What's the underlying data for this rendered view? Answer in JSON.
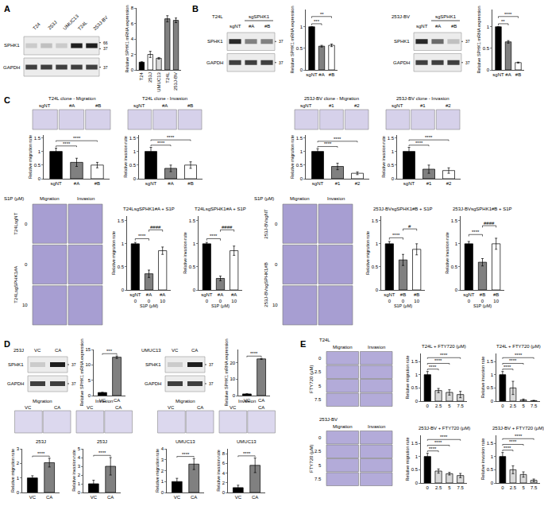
{
  "chart_data": [
    {
      "type": "bar",
      "ylabel": "Relative SPHK1 mRNA expression",
      "categories": [
        "T24",
        "253J",
        "UMUC13",
        "T24L",
        "253J-BV"
      ],
      "values": [
        1,
        2.0,
        1.5,
        6.6,
        6.4
      ],
      "errors": [
        0.05,
        0.4,
        0.1,
        0.4,
        0.3
      ],
      "colors": [
        "#000000",
        "#ffffff",
        "#d9d9d9",
        "#808080",
        "#808080"
      ],
      "ylim": [
        0,
        8
      ],
      "yticks": [
        0,
        2,
        4,
        6,
        8
      ]
    },
    {
      "type": "bar",
      "ylabel": "Relative SPHK1 mRNA expression",
      "categories": [
        "sgNT",
        "#A",
        "#B"
      ],
      "values": [
        1,
        0.55,
        0.57
      ],
      "errors": [
        0,
        0.02,
        0.03
      ],
      "colors": [
        "#000000",
        "#808080",
        "#ffffff"
      ],
      "ylim": [
        0,
        1.4
      ],
      "yticks": [
        0,
        0.5,
        1
      ],
      "annotations": [
        {
          "from": 0,
          "to": 1,
          "text": "***"
        },
        {
          "from": 0,
          "to": 2,
          "text": "**"
        }
      ]
    },
    {
      "type": "bar",
      "ylabel": "Relative SPHK1 mRNA expression",
      "categories": [
        "sgNT",
        "#A",
        "#B"
      ],
      "values": [
        1,
        0.65,
        0.17
      ],
      "errors": [
        0,
        0.03,
        0.01
      ],
      "colors": [
        "#000000",
        "#808080",
        "#ffffff"
      ],
      "ylim": [
        0,
        1.4
      ],
      "yticks": [
        0,
        0.5,
        1
      ],
      "annotations": [
        {
          "from": 0,
          "to": 1,
          "text": "**"
        },
        {
          "from": 0,
          "to": 2,
          "text": "****"
        }
      ]
    },
    {
      "type": "bar",
      "ylabel": "Relative migration rate",
      "categories": [
        "sgNT",
        "#A",
        "#B"
      ],
      "values": [
        1,
        0.6,
        0.5
      ],
      "errors": [
        0.12,
        0.15,
        0.1
      ],
      "colors": [
        "#000000",
        "#808080",
        "#ffffff"
      ],
      "ylim": [
        0,
        1.6
      ],
      "yticks": [
        0,
        0.5,
        1,
        1.5
      ],
      "annotations": [
        {
          "from": 0,
          "to": 1,
          "text": "****"
        },
        {
          "from": 0,
          "to": 2,
          "text": "****"
        }
      ]
    },
    {
      "type": "bar",
      "ylabel": "Relative invasion rate",
      "categories": [
        "sgNT",
        "#A",
        "#B"
      ],
      "values": [
        1,
        0.38,
        0.5
      ],
      "errors": [
        0.15,
        0.12,
        0.12
      ],
      "colors": [
        "#000000",
        "#808080",
        "#ffffff"
      ],
      "ylim": [
        0,
        1.6
      ],
      "yticks": [
        0,
        0.5,
        1,
        1.5
      ],
      "annotations": [
        {
          "from": 0,
          "to": 1,
          "text": "****"
        },
        {
          "from": 0,
          "to": 2,
          "text": "****"
        }
      ]
    },
    {
      "type": "bar",
      "ylabel": "Relative migration rate",
      "categories": [
        "sgNT",
        "#1",
        "#2"
      ],
      "values": [
        1,
        0.45,
        0.2
      ],
      "errors": [
        0.1,
        0.12,
        0.05
      ],
      "colors": [
        "#000000",
        "#808080",
        "#ffffff"
      ],
      "ylim": [
        0,
        1.6
      ],
      "yticks": [
        0,
        0.5,
        1,
        1.5
      ],
      "annotations": [
        {
          "from": 0,
          "to": 1,
          "text": "****"
        },
        {
          "from": 0,
          "to": 2,
          "text": "****"
        }
      ]
    },
    {
      "type": "bar",
      "ylabel": "Relative invasion rate",
      "categories": [
        "sgNT",
        "#1",
        "#2"
      ],
      "values": [
        1,
        0.35,
        0.3
      ],
      "errors": [
        0.15,
        0.15,
        0.1
      ],
      "colors": [
        "#000000",
        "#808080",
        "#ffffff"
      ],
      "ylim": [
        0,
        1.6
      ],
      "yticks": [
        0,
        0.5,
        1,
        1.5
      ],
      "annotations": [
        {
          "from": 0,
          "to": 1,
          "text": "****"
        },
        {
          "from": 0,
          "to": 2,
          "text": "****"
        }
      ]
    },
    {
      "type": "bar",
      "title": "T24LsgSPHK1#A + S1P",
      "ylabel": "Relative migration rate",
      "xlabel": "S1P (μM)",
      "categories": [
        "sgNT",
        "#A",
        "#A"
      ],
      "doses": [
        0,
        0,
        10
      ],
      "values": [
        1,
        0.35,
        0.85
      ],
      "errors": [
        0.03,
        0.08,
        0.08
      ],
      "colors": [
        "#000000",
        "#808080",
        "#ffffff"
      ],
      "ylim": [
        0,
        1.6
      ],
      "yticks": [
        0,
        0.5,
        1,
        1.5
      ],
      "annotations": [
        {
          "from": 0,
          "to": 1,
          "text": "****"
        },
        {
          "from": 1,
          "to": 2,
          "text": "####"
        }
      ]
    },
    {
      "type": "bar",
      "title": "T24LsgSPHK1#A + S1P",
      "ylabel": "Relative invasion rate",
      "xlabel": "S1P (μM)",
      "categories": [
        "sgNT",
        "#A",
        "#A"
      ],
      "doses": [
        0,
        0,
        10
      ],
      "values": [
        1,
        0.25,
        0.85
      ],
      "errors": [
        0.03,
        0.05,
        0.1
      ],
      "colors": [
        "#000000",
        "#808080",
        "#ffffff"
      ],
      "ylim": [
        0,
        1.6
      ],
      "yticks": [
        0,
        0.5,
        1,
        1.5
      ],
      "annotations": [
        {
          "from": 0,
          "to": 1,
          "text": "****"
        },
        {
          "from": 1,
          "to": 2,
          "text": "####"
        }
      ]
    },
    {
      "type": "bar",
      "title": "253J-BVsgSPHK1#B + S1P",
      "ylabel": "Relative migration rate",
      "xlabel": "S1P (μM)",
      "categories": [
        "sgNT",
        "#B",
        "#B"
      ],
      "doses": [
        0,
        0,
        10
      ],
      "values": [
        1,
        0.65,
        0.88
      ],
      "errors": [
        0.05,
        0.12,
        0.12
      ],
      "colors": [
        "#000000",
        "#808080",
        "#ffffff"
      ],
      "ylim": [
        0,
        1.6
      ],
      "yticks": [
        0,
        0.5,
        1,
        1.5
      ],
      "annotations": [
        {
          "from": 0,
          "to": 1,
          "text": "****"
        },
        {
          "from": 1,
          "to": 2,
          "text": "#"
        }
      ]
    },
    {
      "type": "bar",
      "title": "253J-BVsgSPHK1#B + S1P",
      "ylabel": "Relative invasion rate",
      "xlabel": "S1P (μM)",
      "categories": [
        "sgNT",
        "#B",
        "#B"
      ],
      "doses": [
        0,
        0,
        10
      ],
      "values": [
        1,
        0.6,
        1.0
      ],
      "errors": [
        0.05,
        0.08,
        0.12
      ],
      "colors": [
        "#000000",
        "#808080",
        "#ffffff"
      ],
      "ylim": [
        0,
        1.6
      ],
      "yticks": [
        0,
        0.5,
        1,
        1.5
      ],
      "annotations": [
        {
          "from": 0,
          "to": 1,
          "text": "****"
        },
        {
          "from": 1,
          "to": 2,
          "text": "####"
        }
      ]
    },
    {
      "type": "bar",
      "ylabel": "Relative SPHK1 mRNA expression",
      "categories": [
        "VC",
        "CA"
      ],
      "values": [
        1,
        12.5
      ],
      "errors": [
        0.05,
        0.4
      ],
      "colors": [
        "#000000",
        "#808080"
      ],
      "ylim": [
        0,
        15
      ],
      "yticks": [
        0,
        5,
        10,
        15
      ],
      "annotations": [
        {
          "from": 0,
          "to": 1,
          "text": "***"
        }
      ]
    },
    {
      "type": "bar",
      "ylabel": "Relative SPHK1 mRNA expression",
      "categories": [
        "VC",
        "CA"
      ],
      "values": [
        1,
        22.3
      ],
      "errors": [
        0.05,
        0.3
      ],
      "colors": [
        "#000000",
        "#808080"
      ],
      "ylim": [
        0,
        28
      ],
      "yticks": [
        0,
        10,
        20
      ],
      "annotations": [
        {
          "from": 0,
          "to": 1,
          "text": "****"
        }
      ]
    },
    {
      "type": "bar",
      "title": "253J",
      "ylabel": "Relative migration rate",
      "categories": [
        "VC",
        "CA"
      ],
      "values": [
        1,
        2.05
      ],
      "errors": [
        0.15,
        0.3
      ],
      "colors": [
        "#000000",
        "#808080"
      ],
      "ylim": [
        0,
        3
      ],
      "yticks": [
        0,
        1,
        2,
        3
      ],
      "annotations": [
        {
          "from": 0,
          "to": 1,
          "text": "****"
        }
      ]
    },
    {
      "type": "bar",
      "title": "253J",
      "ylabel": "Relative invasion rate",
      "categories": [
        "VC",
        "CA"
      ],
      "values": [
        1,
        3.0
      ],
      "errors": [
        0.4,
        1.0
      ],
      "colors": [
        "#000000",
        "#808080"
      ],
      "ylim": [
        0,
        5
      ],
      "yticks": [
        0,
        1,
        2,
        3,
        4,
        5
      ],
      "annotations": [
        {
          "from": 0,
          "to": 1,
          "text": "****"
        }
      ]
    },
    {
      "type": "bar",
      "title": "UMUC13",
      "ylabel": "Relative migration rate",
      "categories": [
        "VC",
        "CA"
      ],
      "values": [
        1,
        2.6
      ],
      "errors": [
        0.3,
        0.5
      ],
      "colors": [
        "#000000",
        "#808080"
      ],
      "ylim": [
        0,
        4
      ],
      "yticks": [
        0,
        1,
        2,
        3,
        4
      ],
      "annotations": [
        {
          "from": 0,
          "to": 1,
          "text": "****"
        }
      ]
    },
    {
      "type": "bar",
      "title": "UMUC13",
      "ylabel": "Relative invasion rate",
      "categories": [
        "VC",
        "CA"
      ],
      "values": [
        1,
        5.6
      ],
      "errors": [
        0.5,
        1.5
      ],
      "colors": [
        "#000000",
        "#808080"
      ],
      "ylim": [
        0,
        9
      ],
      "yticks": [
        0,
        2,
        4,
        6,
        8
      ],
      "annotations": [
        {
          "from": 0,
          "to": 1,
          "text": "****"
        }
      ]
    },
    {
      "type": "bar",
      "title": "T24L + FTY720 (μM)",
      "ylabel": "Relative migration rate",
      "categories": [
        "0",
        "2.5",
        "5",
        "7.5"
      ],
      "values": [
        1,
        0.4,
        0.33,
        0.25
      ],
      "errors": [
        0.12,
        0.08,
        0.1,
        0.12
      ],
      "colors": [
        "#000000",
        "#d9d9d9",
        "#d9d9d9",
        "#d9d9d9"
      ],
      "ylim": [
        0,
        1.8
      ],
      "yticks": [
        0,
        0.5,
        1,
        1.5
      ],
      "annotations": [
        {
          "from": 0,
          "to": 1,
          "text": "****"
        },
        {
          "from": 0,
          "to": 2,
          "text": "****"
        },
        {
          "from": 0,
          "to": 3,
          "text": "****"
        }
      ]
    },
    {
      "type": "bar",
      "title": "T24L + FTY720 (μM)",
      "ylabel": "Relative invasion rate",
      "categories": [
        "0",
        "2.5",
        "5",
        "7.5"
      ],
      "values": [
        1,
        0.5,
        0.05,
        0.02
      ],
      "errors": [
        0.12,
        0.25,
        0.03,
        0.01
      ],
      "colors": [
        "#000000",
        "#d9d9d9",
        "#d9d9d9",
        "#d9d9d9"
      ],
      "ylim": [
        0,
        1.8
      ],
      "yticks": [
        0,
        0.5,
        1,
        1.5
      ],
      "annotations": [
        {
          "from": 0,
          "to": 1,
          "text": "****"
        },
        {
          "from": 0,
          "to": 2,
          "text": "****"
        },
        {
          "from": 0,
          "to": 3,
          "text": "****"
        }
      ]
    },
    {
      "type": "bar",
      "title": "253J-BV + FTY720 (μM)",
      "ylabel": "Relative migration rate",
      "categories": [
        "0",
        "2.5",
        "5",
        "7.5"
      ],
      "values": [
        1,
        0.45,
        0.35,
        0.28
      ],
      "errors": [
        0.12,
        0.08,
        0.05,
        0.08
      ],
      "colors": [
        "#000000",
        "#d9d9d9",
        "#d9d9d9",
        "#d9d9d9"
      ],
      "ylim": [
        0,
        1.8
      ],
      "yticks": [
        0,
        0.5,
        1,
        1.5
      ],
      "annotations": [
        {
          "from": 0,
          "to": 1,
          "text": "****"
        },
        {
          "from": 0,
          "to": 2,
          "text": "****"
        },
        {
          "from": 0,
          "to": 3,
          "text": "****"
        }
      ]
    },
    {
      "type": "bar",
      "title": "253J-BV + FTY720 (μM)",
      "ylabel": "Relative invasion rate",
      "categories": [
        "0",
        "2.5",
        "5",
        "7.5"
      ],
      "values": [
        1,
        0.5,
        0.32,
        0.1
      ],
      "errors": [
        0.15,
        0.15,
        0.1,
        0.05
      ],
      "colors": [
        "#000000",
        "#d9d9d9",
        "#d9d9d9",
        "#d9d9d9"
      ],
      "ylim": [
        0,
        1.8
      ],
      "yticks": [
        0,
        0.5,
        1,
        1.5
      ],
      "annotations": [
        {
          "from": 0,
          "to": 1,
          "text": "****"
        },
        {
          "from": 0,
          "to": 2,
          "text": "****"
        },
        {
          "from": 0,
          "to": 3,
          "text": "****"
        }
      ]
    }
  ],
  "panel_letters": [
    "A",
    "B",
    "C",
    "D",
    "E"
  ],
  "blots": [
    {
      "lanes": [
        "T24",
        "253J",
        "UMUC13",
        "T24L",
        "253J-BV"
      ],
      "rows": [
        "SPHK1",
        "GAPDH"
      ],
      "markers": [
        [
          66,
          37
        ],
        [
          37
        ]
      ]
    },
    {
      "title": "T24L",
      "group": "sgSPHK1",
      "lanes": [
        "sgNT",
        "#A",
        "#B"
      ],
      "rows": [
        "SPHK1",
        "GAPDH"
      ],
      "markers": [
        [
          37
        ],
        [
          37
        ]
      ]
    },
    {
      "title": "253J-BV",
      "group": "sgSPHK1",
      "lanes": [
        "sgNT",
        "#A",
        "#B"
      ],
      "rows": [
        "SPHK1",
        "GAPDH"
      ],
      "markers": [
        [
          37
        ],
        [
          37
        ]
      ]
    },
    {
      "title": "253J",
      "lanes": [
        "VC",
        "CA"
      ],
      "rows": [
        "SPHK1",
        "GAPDH"
      ],
      "markers": [
        [
          37
        ],
        [
          37
        ]
      ]
    },
    {
      "title": "UMUC13",
      "lanes": [
        "VC",
        "CA"
      ],
      "rows": [
        "SPHK1",
        "GAPDH"
      ],
      "markers": [
        [
          37
        ],
        [
          37
        ]
      ]
    }
  ],
  "image_strips": [
    {
      "title": "T24L clone - Migration",
      "columns": [
        "sgNT",
        "#A",
        "#B"
      ]
    },
    {
      "title": "T24L clone - Invasion",
      "columns": [
        "sgNT",
        "#A",
        "#B"
      ]
    },
    {
      "title": "253J-BV clone - Migration",
      "columns": [
        "sgNT",
        "#1",
        "#2"
      ]
    },
    {
      "title": "253J-BV clone - Invasion",
      "columns": [
        "sgNT",
        "#1",
        "#2"
      ]
    }
  ],
  "image_grids": [
    {
      "corner": "S1P (μM)",
      "columns": [
        "Migration",
        "Invasion"
      ],
      "rows": [
        0,
        0,
        10
      ],
      "row_labels": [
        "T24LsgNT",
        "T24LsgSPHK1#A",
        null
      ]
    },
    {
      "corner": "S1P (μM)",
      "columns": [
        "Migration",
        "Invasion"
      ],
      "rows": [
        0,
        0,
        10
      ],
      "row_labels": [
        "253J-BVsgNT",
        "253J-BVsgSPHK1#B",
        null
      ]
    }
  ],
  "image_pairs": [
    {
      "columns": [
        "Migration",
        "Invasion"
      ],
      "lanes": [
        "VC",
        "CA"
      ]
    },
    {
      "columns": [
        "Migration",
        "Invasion"
      ],
      "lanes": [
        "VC",
        "CA"
      ]
    }
  ],
  "dose_grids": [
    {
      "title": "T24L",
      "columns": [
        "Migration",
        "Invasion"
      ],
      "row_title": "FTY720 (μM)",
      "rows": [
        0,
        2.5,
        5,
        7.5
      ]
    },
    {
      "title": "253J-BV",
      "columns": [
        "Migration",
        "Invasion"
      ],
      "row_title": "FTY720 (μM)",
      "rows": [
        0,
        2.5,
        5,
        7.5
      ]
    }
  ]
}
